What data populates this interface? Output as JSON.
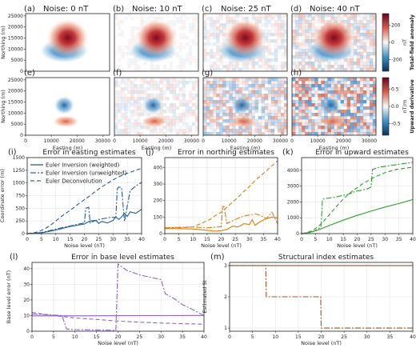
{
  "colors": {
    "blue": "#1f5f97",
    "orange": "#e07b12",
    "green": "#2ca02c",
    "purple": "#8e63c5",
    "brown": "#a0522d",
    "red": "#b2182b",
    "negblue": "#2166ac"
  },
  "maps": {
    "panels": [
      {
        "label": "(a)",
        "title": "Noise: 0 nT",
        "row": "anomaly",
        "noise": 0
      },
      {
        "label": "(b)",
        "title": "Noise: 10 nT",
        "row": "anomaly",
        "noise": 10
      },
      {
        "label": "(c)",
        "title": "Noise: 25 nT",
        "row": "anomaly",
        "noise": 25
      },
      {
        "label": "(d)",
        "title": "Noise: 40 nT",
        "row": "anomaly",
        "noise": 40
      },
      {
        "label": "(e)",
        "title": "",
        "row": "derivative",
        "noise": 0
      },
      {
        "label": "(f)",
        "title": "",
        "row": "derivative",
        "noise": 10
      },
      {
        "label": "(g)",
        "title": "",
        "row": "derivative",
        "noise": 25
      },
      {
        "label": "(h)",
        "title": "",
        "row": "derivative",
        "noise": 40
      }
    ],
    "ylabel": "Northing (m)",
    "xlabel": "Easting (m)",
    "yticks": [
      "0",
      "5000",
      "10000",
      "15000",
      "20000",
      "25000"
    ],
    "xticks": [
      "0",
      "10000",
      "20000",
      "30000"
    ],
    "colorbar_anomaly": {
      "label": "Total-field anomaly",
      "unit": "nT",
      "ticks": [
        "200",
        "0",
        "-200"
      ]
    },
    "colorbar_derivative": {
      "label": "Upward derivative",
      "unit": "nT/m",
      "ticks": [
        "0.5",
        "0.0",
        "-0.5"
      ]
    }
  },
  "chart_data": [
    {
      "type": "line",
      "label": "(i)",
      "title": "Error in easting estimates",
      "xlabel": "Noise level (nT)",
      "ylabel": "Coordinate error (m)",
      "xlim": [
        0,
        40
      ],
      "ylim": [
        0,
        1500
      ],
      "xticks": [
        0,
        5,
        10,
        15,
        20,
        25,
        30,
        35,
        40
      ],
      "yticks": [
        0,
        250,
        500,
        750,
        1000,
        1250,
        1500
      ],
      "legend": [
        "Euler Inversion (weighted)",
        "Euler Inversion (unweighted)",
        "Euler Deconvolution"
      ],
      "color": "blue",
      "series": [
        {
          "name": "Euler Inversion (weighted)",
          "dash": "solid",
          "x": [
            0,
            5,
            10,
            15,
            20,
            22,
            24,
            25,
            26,
            28,
            30,
            31,
            32,
            33,
            34,
            35,
            36,
            38,
            40
          ],
          "y": [
            0,
            15,
            70,
            140,
            190,
            250,
            260,
            200,
            240,
            210,
            260,
            330,
            280,
            330,
            400,
            340,
            430,
            400,
            480
          ]
        },
        {
          "name": "Euler Inversion (unweighted)",
          "dash": "dashdot",
          "x": [
            0,
            5,
            10,
            15,
            19,
            20,
            20.5,
            21.5,
            22,
            23,
            25,
            27,
            29,
            31,
            31.5,
            32,
            33,
            34,
            36,
            38,
            40
          ],
          "y": [
            0,
            20,
            90,
            150,
            200,
            210,
            500,
            520,
            210,
            240,
            280,
            300,
            320,
            320,
            880,
            920,
            900,
            240,
            850,
            940,
            1010
          ]
        },
        {
          "name": "Euler Deconvolution",
          "dash": "dashed",
          "x": [
            0,
            2,
            4,
            6,
            8,
            10,
            12,
            14,
            16,
            18,
            20,
            22,
            24,
            26,
            28,
            30,
            32,
            34,
            36,
            38,
            40
          ],
          "y": [
            0,
            10,
            40,
            90,
            160,
            250,
            340,
            420,
            500,
            590,
            670,
            750,
            840,
            920,
            990,
            1060,
            1120,
            1170,
            1210,
            1250,
            1290
          ]
        }
      ]
    },
    {
      "type": "line",
      "label": "(j)",
      "title": "Error in northing estimates",
      "xlabel": "Noise level (nT)",
      "ylabel": "",
      "xlim": [
        0,
        40
      ],
      "ylim": [
        0,
        460
      ],
      "xticks": [
        0,
        5,
        10,
        15,
        20,
        25,
        30,
        35,
        40
      ],
      "yticks": [
        0,
        100,
        200,
        300,
        400
      ],
      "color": "orange",
      "series": [
        {
          "name": "Euler Inversion (weighted)",
          "dash": "solid",
          "x": [
            0,
            5,
            10,
            15,
            18,
            20,
            22,
            24,
            26,
            28,
            30,
            31,
            32,
            34,
            36,
            38,
            40
          ],
          "y": [
            30,
            30,
            28,
            20,
            15,
            18,
            25,
            45,
            40,
            60,
            55,
            85,
            50,
            75,
            90,
            100,
            95
          ]
        },
        {
          "name": "Euler Inversion (unweighted)",
          "dash": "dashdot",
          "x": [
            0,
            5,
            10,
            15,
            19,
            20,
            20.5,
            21,
            22,
            23,
            25,
            27,
            29,
            31,
            32,
            34,
            36,
            38,
            40
          ],
          "y": [
            35,
            38,
            40,
            35,
            40,
            42,
            160,
            165,
            60,
            70,
            85,
            100,
            110,
            115,
            120,
            110,
            90,
            130,
            60
          ]
        },
        {
          "name": "Euler Deconvolution",
          "dash": "dashed",
          "x": [
            0,
            5,
            10,
            12,
            14,
            16,
            18,
            20,
            22,
            24,
            26,
            28,
            30,
            32,
            34,
            36,
            38,
            40
          ],
          "y": [
            35,
            35,
            40,
            55,
            70,
            85,
            110,
            130,
            160,
            190,
            220,
            255,
            285,
            320,
            350,
            380,
            410,
            440
          ]
        }
      ]
    },
    {
      "type": "line",
      "label": "(k)",
      "title": "Error in upward estimates",
      "xlabel": "Noise level (nT)",
      "ylabel": "",
      "xlim": [
        0,
        40
      ],
      "ylim": [
        0,
        4800
      ],
      "xticks": [
        0,
        5,
        10,
        15,
        20,
        25,
        30,
        35,
        40
      ],
      "yticks": [
        0,
        1000,
        2000,
        3000,
        4000
      ],
      "color": "green",
      "series": [
        {
          "name": "Euler Inversion (weighted)",
          "dash": "solid",
          "x": [
            0,
            3,
            6,
            10,
            15,
            20,
            25,
            30,
            35,
            40
          ],
          "y": [
            0,
            80,
            230,
            520,
            850,
            1150,
            1420,
            1680,
            1900,
            2150
          ]
        },
        {
          "name": "Euler Inversion (unweighted)",
          "dash": "dashdot",
          "x": [
            0,
            2,
            4,
            6,
            7,
            7.5,
            8,
            10,
            12,
            14,
            16,
            18,
            19,
            20,
            22,
            24,
            25,
            25.5,
            26,
            28,
            30,
            32,
            34,
            36,
            38,
            40
          ],
          "y": [
            0,
            30,
            120,
            300,
            450,
            2150,
            2200,
            2250,
            2300,
            2380,
            2450,
            2550,
            2650,
            2700,
            2750,
            2850,
            2950,
            4050,
            4080,
            4200,
            4250,
            4300,
            4350,
            4400,
            4450,
            4500
          ]
        },
        {
          "name": "Euler Deconvolution",
          "dash": "dashed",
          "x": [
            0,
            2,
            4,
            6,
            8,
            10,
            12,
            14,
            16,
            18,
            20,
            22,
            24,
            26,
            28,
            30,
            32,
            34,
            36,
            38,
            40
          ],
          "y": [
            0,
            60,
            200,
            450,
            800,
            1200,
            1600,
            2000,
            2350,
            2650,
            2900,
            3150,
            3350,
            3550,
            3700,
            3850,
            3950,
            4050,
            4100,
            4150,
            4200
          ]
        }
      ]
    },
    {
      "type": "line",
      "label": "(l)",
      "title": "Error in base level estimates",
      "xlabel": "Noise level (nT)",
      "ylabel": "Base level error (nT)",
      "xlim": [
        0,
        40
      ],
      "ylim": [
        0,
        44
      ],
      "xticks": [
        0,
        5,
        10,
        15,
        20,
        25,
        30,
        35,
        40
      ],
      "yticks": [
        0,
        10,
        20,
        30,
        40
      ],
      "color": "purple",
      "series": [
        {
          "name": "Euler Inversion (weighted)",
          "dash": "solid",
          "x": [
            0,
            10,
            20,
            30,
            40
          ],
          "y": [
            9.8,
            9.8,
            9.9,
            10.0,
            10.1
          ]
        },
        {
          "name": "Euler Inversion (unweighted)",
          "dash": "dashdot",
          "x": [
            0,
            4,
            7,
            8,
            10,
            14,
            18,
            19.5,
            20,
            21,
            22,
            25,
            30,
            31,
            33,
            35,
            38,
            40
          ],
          "y": [
            11,
            10.5,
            10,
            1.5,
            1,
            0.8,
            0.6,
            0.5,
            43,
            41,
            39,
            36,
            33,
            24,
            21,
            17,
            13,
            10
          ]
        },
        {
          "name": "Euler Deconvolution",
          "dash": "dashed",
          "x": [
            0,
            5,
            10,
            15,
            20,
            25,
            30,
            35,
            40
          ],
          "y": [
            12,
            10,
            8.5,
            7.5,
            6.5,
            5.8,
            5.2,
            4.8,
            4.5
          ]
        }
      ]
    },
    {
      "type": "line",
      "label": "(m)",
      "title": "Structural index estimates",
      "xlabel": "Noise level (nT)",
      "ylabel": "Estimated SI",
      "xlim": [
        0,
        40
      ],
      "ylim": [
        0.9,
        3.1
      ],
      "xticks": [
        0,
        5,
        10,
        15,
        20,
        25,
        30,
        35,
        40
      ],
      "yticks": [
        1,
        2,
        3
      ],
      "color": "brown",
      "series": [
        {
          "name": "Euler Inversion (weighted)",
          "dash": "solid",
          "x": [
            0,
            40
          ],
          "y": [
            3,
            3
          ]
        },
        {
          "name": "Euler Inversion (unweighted)",
          "dash": "dashdot",
          "x": [
            0,
            7.9,
            8,
            19.9,
            20,
            40
          ],
          "y": [
            3,
            3,
            2,
            2,
            1,
            1
          ]
        }
      ]
    }
  ]
}
